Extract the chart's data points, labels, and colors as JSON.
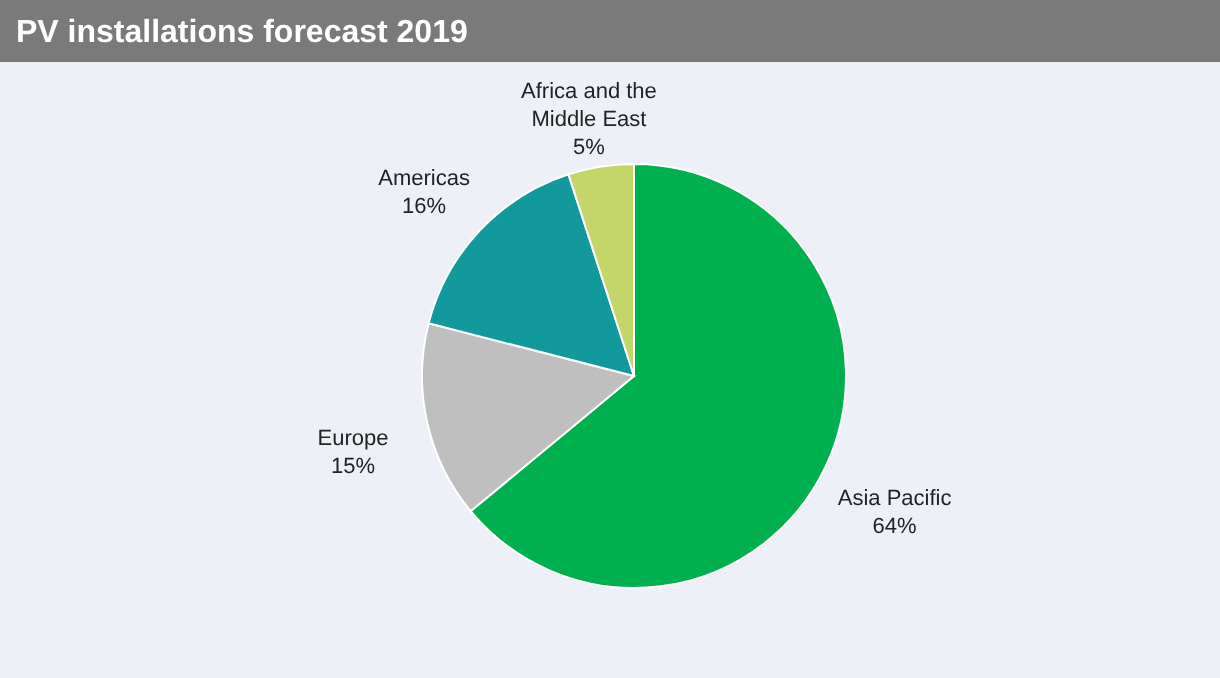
{
  "chart_data": {
    "type": "pie",
    "title": "PV installations forecast 2019",
    "categories": [
      "Asia Pacific",
      "Europe",
      "Americas",
      "Africa and the Middle East"
    ],
    "values": [
      64,
      15,
      16,
      5
    ],
    "colors": [
      "#00b04f",
      "#bfbfbf",
      "#12999c",
      "#c4d66a"
    ],
    "value_labels": [
      "64%",
      "15%",
      "16%",
      "5%"
    ]
  }
}
